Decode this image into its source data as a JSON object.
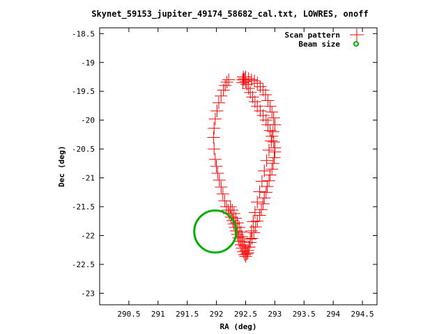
{
  "chart_data": {
    "type": "scatter",
    "title": "Skynet_59153_jupiter_49174_58682_cal.txt, LOWRES, onoff",
    "xlabel": "RA (deg)",
    "ylabel": "Dec (deg)",
    "xlim": [
      290,
      294.75
    ],
    "ylim": [
      -23.2,
      -18.4
    ],
    "xticks": [
      290.5,
      291,
      291.5,
      292,
      292.5,
      293,
      293.5,
      294,
      294.5
    ],
    "xtick_labels": [
      "290.5",
      "291",
      "291.5",
      "292",
      "292.5",
      "293",
      "293.5",
      "294",
      "294.5"
    ],
    "yticks": [
      -18.5,
      -19,
      -19.5,
      -20,
      -20.5,
      -21,
      -21.5,
      -22,
      -22.5,
      -23
    ],
    "ytick_labels": [
      "-18.5",
      "-19",
      "-19.5",
      "-20",
      "-20.5",
      "-21",
      "-21.5",
      "-22",
      "-22.5",
      "-23"
    ],
    "legend_position": "top-right",
    "colors": {
      "scan": "#ff0000",
      "beam": "#00b000",
      "axis": "#000000",
      "background": "#ffffff"
    },
    "series": [
      {
        "name": "Scan pattern",
        "marker": "plus",
        "color": "#ff0000",
        "x": [
          292.45,
          292.48,
          292.5,
          292.52,
          292.44,
          292.47,
          292.51,
          292.53,
          292.5,
          292.46,
          292.55,
          292.58,
          292.6,
          292.65,
          292.7,
          292.75,
          292.8,
          292.82,
          292.85,
          292.88,
          292.9,
          292.92,
          292.95,
          292.97,
          292.98,
          293.0,
          293.0,
          292.99,
          292.97,
          292.95,
          292.93,
          292.9,
          292.88,
          292.86,
          292.84,
          292.82,
          292.8,
          292.78,
          292.75,
          292.72,
          292.7,
          292.68,
          292.65,
          292.63,
          292.6,
          292.58,
          292.56,
          292.55,
          292.54,
          292.53,
          292.52,
          292.52,
          292.51,
          292.5,
          292.49,
          292.48,
          292.47,
          292.46,
          292.45,
          292.44,
          292.43,
          292.41,
          292.38,
          292.35,
          292.32,
          292.3,
          292.28,
          292.25,
          292.22,
          292.2,
          292.18,
          292.15,
          292.12,
          292.1,
          292.07,
          292.04,
          292.0,
          291.97,
          291.96,
          291.95,
          291.94,
          291.95,
          291.97,
          292.0,
          292.02,
          292.05,
          292.08,
          292.1,
          292.13,
          292.15,
          292.17,
          292.2,
          292.22,
          292.25,
          292.28,
          292.3,
          292.33,
          292.35,
          292.38,
          292.4,
          292.42,
          292.44,
          292.46,
          292.48,
          292.5,
          292.52,
          292.54,
          292.56,
          292.58,
          292.6,
          292.62,
          292.65,
          292.68,
          292.7,
          292.72,
          292.75,
          292.78,
          292.8,
          292.85,
          292.9,
          292.95
        ],
        "y": [
          -19.3,
          -19.25,
          -19.3,
          -19.35,
          -19.4,
          -19.45,
          -19.4,
          -19.5,
          -19.6,
          -19.3,
          -19.55,
          -19.6,
          -19.65,
          -19.7,
          -19.75,
          -19.85,
          -19.9,
          -19.95,
          -20.0,
          -20.05,
          -20.1,
          -20.2,
          -20.3,
          -20.4,
          -20.5,
          -20.45,
          -20.55,
          -20.6,
          -20.7,
          -20.8,
          -20.85,
          -20.9,
          -21.0,
          -21.1,
          -21.2,
          -21.3,
          -21.4,
          -21.5,
          -21.6,
          -21.7,
          -21.75,
          -21.8,
          -21.9,
          -22.0,
          -22.1,
          -22.15,
          -22.2,
          -22.25,
          -22.3,
          -22.35,
          -22.3,
          -22.2,
          -22.25,
          -22.15,
          -22.1,
          -22.05,
          -22.0,
          -21.95,
          -21.9,
          -21.85,
          -21.8,
          -21.75,
          -21.65,
          -21.6,
          -21.55,
          -21.5,
          -21.45,
          -21.4,
          -21.3,
          -21.2,
          -21.1,
          -21.0,
          -20.9,
          -20.8,
          -20.6,
          -20.45,
          -20.3,
          -20.15,
          -20.0,
          -19.9,
          -19.8,
          -19.7,
          -19.6,
          -19.5,
          -19.45,
          -19.35,
          -19.3,
          -21.45,
          -21.5,
          -21.55,
          -21.6,
          -21.65,
          -21.7,
          -21.8,
          -21.9,
          -22.0,
          -22.05,
          -22.1,
          -22.15,
          -22.2,
          -22.25,
          -22.3,
          -22.35,
          -22.3,
          -22.2,
          -22.1,
          -21.95,
          -21.8,
          -21.65,
          -21.5,
          -21.3,
          -21.1,
          -20.95,
          -20.8,
          -20.6,
          -20.4,
          -20.2,
          -20.0,
          -19.8,
          -19.7,
          -19.6
        ],
        "x_fix": [
          292.45,
          292.46,
          292.48,
          292.5,
          292.52,
          292.55,
          292.58,
          292.62,
          292.66,
          292.7,
          292.75,
          292.8,
          292.85,
          292.88,
          292.92,
          292.95,
          292.98,
          293.0,
          293.0,
          292.99,
          292.97,
          292.95,
          292.92,
          292.9,
          292.87,
          292.85,
          292.82,
          292.8,
          292.77,
          292.74,
          292.7,
          292.67,
          292.64,
          292.61,
          292.58,
          292.56,
          292.54,
          292.52,
          292.5,
          292.48,
          292.46,
          292.44,
          292.42,
          292.4,
          292.38,
          292.36,
          292.34,
          292.32,
          292.3,
          292.28,
          292.25,
          292.22,
          292.2,
          292.17,
          292.14,
          292.11,
          292.08,
          292.05,
          292.02,
          292.0,
          291.98,
          291.96,
          291.95,
          291.96,
          291.98,
          292.01,
          292.04,
          292.08,
          292.12,
          292.15,
          292.18,
          292.21,
          292.24,
          292.27,
          292.3,
          292.33,
          292.36,
          292.39,
          292.42,
          292.44,
          292.46,
          292.48,
          292.5,
          292.52,
          292.54,
          292.56,
          292.58,
          292.6,
          292.63,
          292.66,
          292.7,
          292.74,
          292.78,
          292.82,
          292.86,
          292.9,
          292.94,
          292.97,
          293.0,
          292.98,
          292.95,
          292.92,
          292.88,
          292.84,
          292.8,
          292.75,
          292.7,
          292.65,
          292.6,
          292.55,
          292.5,
          292.47,
          292.45
        ],
        "y_fix": [
          -19.3,
          -19.25,
          -19.28,
          -19.33,
          -19.38,
          -19.45,
          -19.52,
          -19.6,
          -19.68,
          -19.76,
          -19.84,
          -19.92,
          -20.0,
          -20.08,
          -20.18,
          -20.28,
          -20.38,
          -20.48,
          -20.55,
          -20.65,
          -20.75,
          -20.85,
          -20.95,
          -21.05,
          -21.15,
          -21.25,
          -21.35,
          -21.45,
          -21.55,
          -21.65,
          -21.75,
          -21.85,
          -21.95,
          -22.05,
          -22.12,
          -22.2,
          -22.26,
          -22.32,
          -22.36,
          -22.33,
          -22.28,
          -22.22,
          -22.16,
          -22.1,
          -22.04,
          -21.98,
          -21.92,
          -21.86,
          -21.8,
          -21.74,
          -21.68,
          -21.62,
          -21.56,
          -21.5,
          -21.4,
          -21.28,
          -21.16,
          -21.04,
          -20.92,
          -20.8,
          -20.68,
          -20.5,
          -20.3,
          -20.14,
          -19.98,
          -19.84,
          -19.7,
          -19.58,
          -19.48,
          -19.4,
          -19.34,
          -19.3,
          -21.5,
          -21.56,
          -21.62,
          -21.7,
          -21.78,
          -21.86,
          -21.94,
          -22.02,
          -22.1,
          -22.18,
          -22.26,
          -22.32,
          -22.3,
          -22.2,
          -22.06,
          -21.92,
          -21.76,
          -21.6,
          -21.42,
          -21.24,
          -21.06,
          -20.88,
          -20.7,
          -20.52,
          -20.36,
          -20.2,
          -20.08,
          -19.96,
          -19.86,
          -19.76,
          -19.66,
          -19.56,
          -19.48,
          -19.42,
          -19.36,
          -19.32,
          -19.3,
          -19.28,
          -19.25,
          -19.3,
          -19.35
        ]
      },
      {
        "name": "Beam size",
        "marker": "circle",
        "color": "#00b000",
        "center": [
          291.98,
          -21.93
        ],
        "radius_deg": 0.36
      }
    ]
  }
}
